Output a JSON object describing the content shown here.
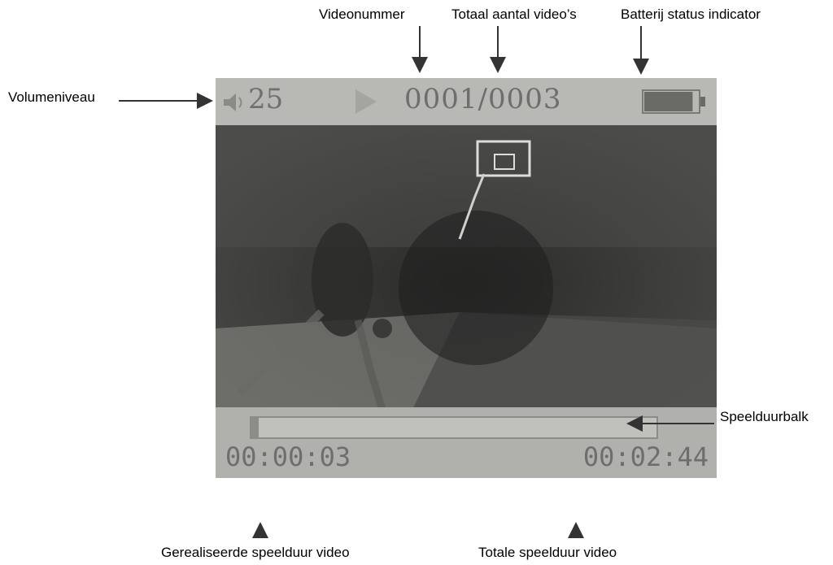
{
  "callouts": {
    "videonummer": "Videonummer",
    "totaal": "Totaal aantal video’s",
    "batterij": "Batterij status indicator",
    "volume": "Volumeniveau",
    "speelduurbalk": "Speelduurbalk",
    "gerealiseerd": "Gerealiseerde speelduur video",
    "totale": "Totale speelduur video"
  },
  "screen": {
    "volume_level": "25",
    "video_counter": "0001/0003",
    "elapsed_time": "00:00:03",
    "total_time": "00:02:44",
    "progress_fraction": 0.018,
    "battery_level_fraction": 0.9
  },
  "icons": [
    "speaker-icon",
    "play-icon",
    "battery-icon"
  ]
}
